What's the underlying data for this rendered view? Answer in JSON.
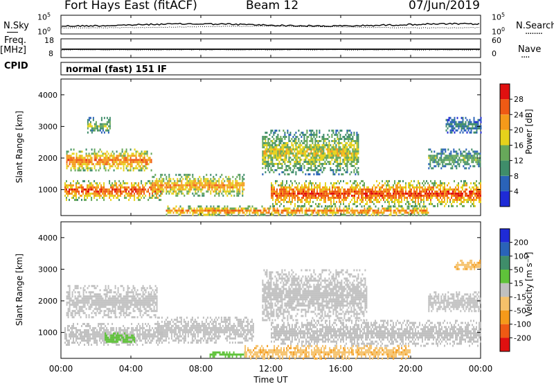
{
  "header": {
    "radar": "Fort Hays East (fitACF)",
    "beam": "Beam 12",
    "date": "07/Jun/2019"
  },
  "left_labels": {
    "nsky": "N.Sky",
    "freq": "Freq.",
    "freq_unit": "[MHz]",
    "cpid": "CPID"
  },
  "right_labels": {
    "nsearch": "N.Search",
    "nsearch_line": "........",
    "nave": "Nave",
    "nave_line": "...."
  },
  "noise_axis": {
    "left_top": "10^5",
    "left_bottom": "10^0",
    "right_top": "10^5",
    "right_bottom": "10^0"
  },
  "freq_axis": {
    "left_top": "18",
    "left_bottom": "8",
    "right_top": "60",
    "right_bottom": "0"
  },
  "cpid_text": "normal (fast) 151 IF",
  "chart_data": [
    {
      "type": "heatmap",
      "name": "power",
      "ylabel": "Slant Range [km]",
      "xlabel": "",
      "x_ticks": [
        "00:00",
        "04:00",
        "08:00",
        "12:00",
        "16:00",
        "20:00",
        "00:00"
      ],
      "y_ticks": [
        1000,
        2000,
        3000,
        4000
      ],
      "xlim": [
        0,
        24
      ],
      "ylim": [
        180,
        4500
      ],
      "colorbar": {
        "label": "Power [dB]",
        "ticks": [
          4,
          8,
          12,
          16,
          20,
          24,
          28
        ],
        "range": [
          0,
          32
        ],
        "colors": [
          "#1f2bd6",
          "#2a63b8",
          "#3f8d6a",
          "#67a85a",
          "#e6d21b",
          "#f59a1a",
          "#ef5a14",
          "#e01010"
        ]
      },
      "echo_bands": [
        {
          "t0": 0.3,
          "t1": 5.2,
          "r0": 1600,
          "r1": 2300,
          "level": 22
        },
        {
          "t0": 0.2,
          "t1": 5.8,
          "r0": 700,
          "r1": 1300,
          "level": 24
        },
        {
          "t0": 5.2,
          "t1": 10.5,
          "r0": 800,
          "r1": 1500,
          "level": 20
        },
        {
          "t0": 1.5,
          "t1": 2.8,
          "r0": 2800,
          "r1": 3300,
          "level": 14
        },
        {
          "t0": 11.5,
          "t1": 17.0,
          "r0": 1500,
          "r1": 2900,
          "level": 16
        },
        {
          "t0": 12.0,
          "t1": 24.0,
          "r0": 500,
          "r1": 1300,
          "level": 24
        },
        {
          "t0": 6.0,
          "t1": 21.0,
          "r0": 200,
          "r1": 500,
          "level": 22
        },
        {
          "t0": 21.0,
          "t1": 24.0,
          "r0": 1700,
          "r1": 2300,
          "level": 12
        },
        {
          "t0": 22.0,
          "t1": 24.0,
          "r0": 2800,
          "r1": 3300,
          "level": 8
        }
      ]
    },
    {
      "type": "heatmap",
      "name": "velocity",
      "ylabel": "Slant Range [km]",
      "xlabel": "Time UT",
      "x_ticks": [
        "00:00",
        "04:00",
        "08:00",
        "12:00",
        "16:00",
        "20:00",
        "00:00"
      ],
      "y_ticks": [
        1000,
        2000,
        3000,
        4000
      ],
      "xlim": [
        0,
        24
      ],
      "ylim": [
        180,
        4500
      ],
      "colorbar": {
        "label": "Velocity [m s⁻¹]",
        "ticks": [
          "200",
          "100",
          "50",
          "15",
          "-15",
          "-50",
          "-100",
          "-200"
        ],
        "colors": [
          "#1f2bd6",
          "#2a63b8",
          "#3f8d6a",
          "#5fc23a",
          "#c0c0c0",
          "#f5c16a",
          "#f59a1a",
          "#ef5a14",
          "#e01010"
        ]
      },
      "echo_bands": [
        {
          "t0": 0.3,
          "t1": 5.5,
          "r0": 1500,
          "r1": 2500,
          "level": 0
        },
        {
          "t0": 0.2,
          "t1": 5.8,
          "r0": 600,
          "r1": 1300,
          "level": 0
        },
        {
          "t0": 2.5,
          "t1": 4.2,
          "r0": 700,
          "r1": 1000,
          "level": 30
        },
        {
          "t0": 5.5,
          "t1": 11.0,
          "r0": 700,
          "r1": 1500,
          "level": 0
        },
        {
          "t0": 8.5,
          "t1": 10.5,
          "r0": 250,
          "r1": 400,
          "level": 30
        },
        {
          "t0": 11.5,
          "t1": 17.5,
          "r0": 1400,
          "r1": 3000,
          "level": 0
        },
        {
          "t0": 12.0,
          "t1": 24.0,
          "r0": 600,
          "r1": 1400,
          "level": 0
        },
        {
          "t0": 10.5,
          "t1": 20.0,
          "r0": 200,
          "r1": 600,
          "level": -40
        },
        {
          "t0": 21.0,
          "t1": 24.0,
          "r0": 1700,
          "r1": 2300,
          "level": 0
        },
        {
          "t0": 22.5,
          "t1": 24.0,
          "r0": 3000,
          "r1": 3300,
          "level": -40
        }
      ]
    }
  ]
}
